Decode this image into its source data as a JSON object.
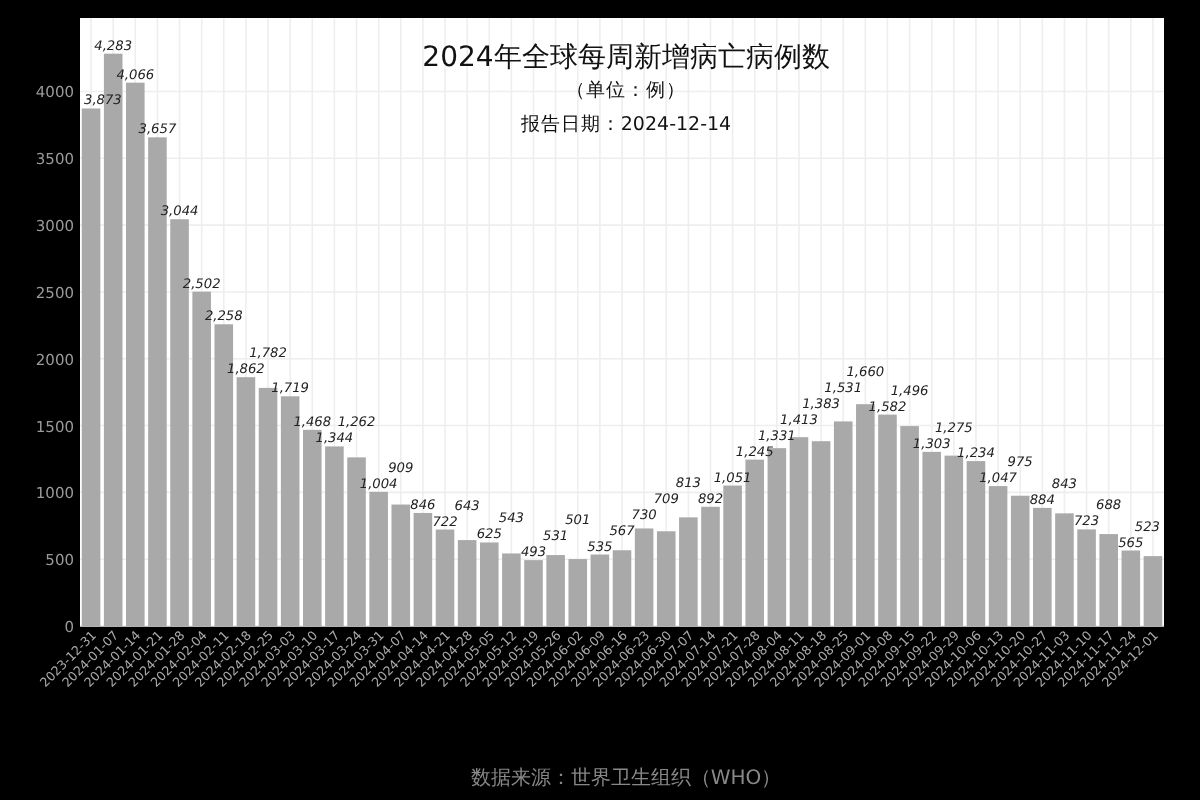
{
  "chart_data": {
    "type": "bar",
    "title": "2024年全球每周新增病亡病例数",
    "subtitle": "（单位：例）",
    "annotations": [
      "报告日期：2024-12-14",
      "数据来源：世界卫生组织（WHO）"
    ],
    "categories": [
      "2023-12-31",
      "2024-01-07",
      "2024-01-14",
      "2024-01-21",
      "2024-01-28",
      "2024-02-04",
      "2024-02-11",
      "2024-02-18",
      "2024-02-25",
      "2024-03-03",
      "2024-03-10",
      "2024-03-17",
      "2024-03-24",
      "2024-03-31",
      "2024-04-07",
      "2024-04-14",
      "2024-04-21",
      "2024-04-28",
      "2024-05-05",
      "2024-05-12",
      "2024-05-19",
      "2024-05-26",
      "2024-06-02",
      "2024-06-09",
      "2024-06-16",
      "2024-06-23",
      "2024-06-30",
      "2024-07-07",
      "2024-07-14",
      "2024-07-21",
      "2024-07-28",
      "2024-08-04",
      "2024-08-11",
      "2024-08-18",
      "2024-08-25",
      "2024-09-01",
      "2024-09-08",
      "2024-09-15",
      "2024-09-22",
      "2024-09-29",
      "2024-10-06",
      "2024-10-13",
      "2024-10-20",
      "2024-10-27",
      "2024-11-03",
      "2024-11-10",
      "2024-11-17",
      "2024-11-24",
      "2024-12-01"
    ],
    "values": [
      3873,
      4283,
      4066,
      3657,
      3044,
      2502,
      2258,
      1862,
      1782,
      1719,
      1468,
      1344,
      1262,
      1004,
      909,
      846,
      722,
      643,
      625,
      543,
      493,
      531,
      501,
      535,
      567,
      730,
      709,
      813,
      892,
      1051,
      1245,
      1331,
      1413,
      1383,
      1531,
      1660,
      1582,
      1496,
      1303,
      1275,
      1234,
      1047,
      975,
      884,
      843,
      723,
      688,
      565,
      523
    ],
    "value_labels": [
      "3,873",
      "4,283",
      "4,066",
      "3,657",
      "3,044",
      "2,502",
      "2,258",
      "1,862",
      "1,782",
      "1,719",
      "1,468",
      "1,344",
      "1,262",
      "1,004",
      "909",
      "846",
      "722",
      "643",
      "625",
      "543",
      "493",
      "531",
      "501",
      "535",
      "567",
      "730",
      "709",
      "813",
      "892",
      "1,051",
      "1,245",
      "1,331",
      "1,413",
      "1,383",
      "1,531",
      "1,660",
      "1,582",
      "1,496",
      "1,303",
      "1,275",
      "1,234",
      "1,047",
      "975",
      "884",
      "843",
      "723",
      "688",
      "565",
      "523"
    ],
    "color": "#a9a9a9",
    "ylim": [
      0,
      4550
    ],
    "yticks": [
      0,
      500,
      1000,
      1500,
      2000,
      2500,
      3000,
      3500,
      4000
    ],
    "grid": true
  }
}
